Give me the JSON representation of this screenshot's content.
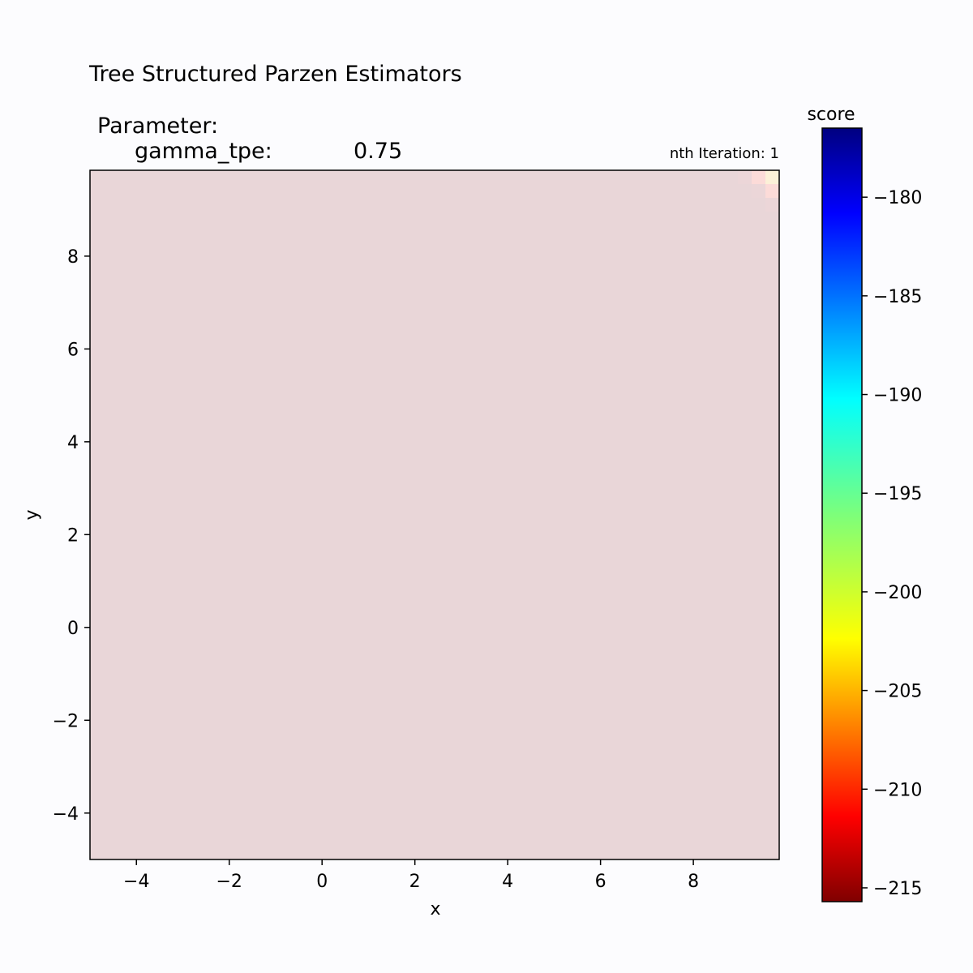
{
  "figure": {
    "title": "Tree Structured Parzen Estimators",
    "parameter_heading": "Parameter:",
    "parameter_name": "gamma_tpe:",
    "parameter_value": "0.75",
    "iteration_label": "nth Iteration: 1"
  },
  "chart_data": {
    "type": "heatmap",
    "title": "Tree Structured Parzen Estimators",
    "xlabel": "x",
    "ylabel": "y",
    "xlim": [
      -5,
      9.85
    ],
    "ylim": [
      -5,
      9.85
    ],
    "x_ticks": [
      -4,
      -2,
      0,
      2,
      4,
      6,
      8
    ],
    "y_ticks": [
      -4,
      -2,
      0,
      2,
      4,
      6,
      8
    ],
    "x_tick_labels": [
      "−4",
      "−2",
      "0",
      "2",
      "4",
      "6",
      "8"
    ],
    "y_tick_labels": [
      "−4",
      "−2",
      "0",
      "2",
      "4",
      "6",
      "8"
    ],
    "surface": "score = -x^2 - y^2 (sphere function), maximum near (0, 0)",
    "colormap": "jet",
    "colormap_reversed": true,
    "surface_alpha": 0.15,
    "colorbar": {
      "label": "score",
      "range": [
        -215.7,
        -176.5
      ],
      "ticks": [
        -180,
        -185,
        -190,
        -195,
        -200,
        -205,
        -210,
        -215
      ],
      "tick_labels": [
        "−180",
        "−185",
        "−190",
        "−195",
        "−200",
        "−205",
        "−210",
        "−215"
      ]
    },
    "grid": false
  }
}
